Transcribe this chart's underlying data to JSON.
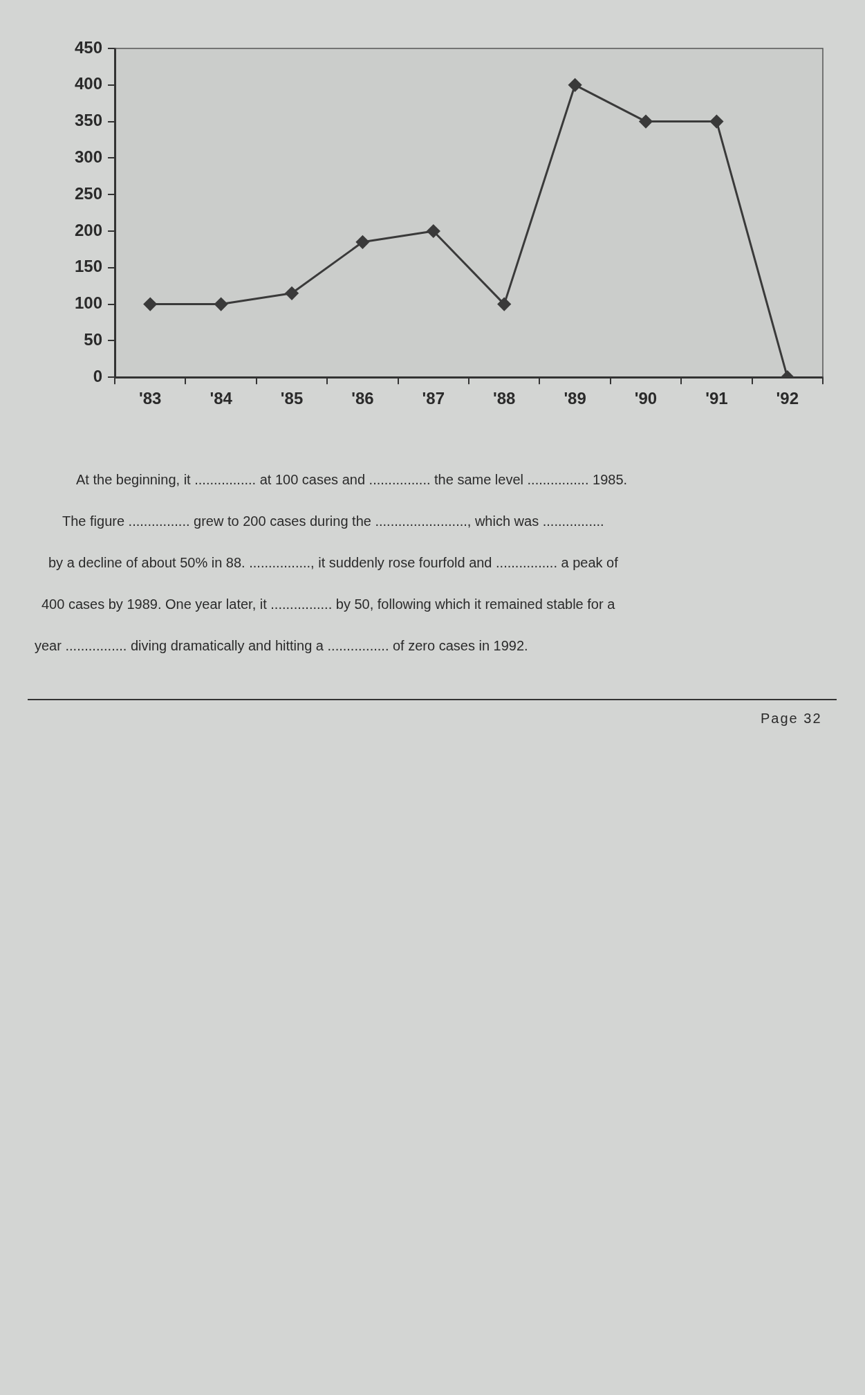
{
  "chart_data": {
    "type": "line",
    "categories": [
      "'83",
      "'84",
      "'85",
      "'86",
      "'87",
      "'88",
      "'89",
      "'90",
      "'91",
      "'92"
    ],
    "series": [
      {
        "color": "#3a3a3a",
        "values": [
          100,
          100,
          115,
          185,
          200,
          100,
          400,
          350,
          350,
          0
        ]
      }
    ],
    "ylim": [
      0,
      450
    ],
    "yticks": [
      0,
      50,
      100,
      150,
      200,
      250,
      300,
      350,
      400,
      450
    ],
    "marker": "diamond",
    "line_style": "solid",
    "annotations": [
      "At the beginning, it ................ at 100 cases and ................ the same level ................ 1985.",
      "The figure ................ grew to 200 cases during the ........................, which was ................",
      "by a decline of about 50% in 88. ................, it suddenly rose fourfold and ................ a peak of",
      "400 cases by 1989. One year later, it ................ by 50, following which it remained stable for a",
      "year ................ diving dramatically and hitting a ................ of zero cases in 1992.",
      "Page 32"
    ]
  }
}
